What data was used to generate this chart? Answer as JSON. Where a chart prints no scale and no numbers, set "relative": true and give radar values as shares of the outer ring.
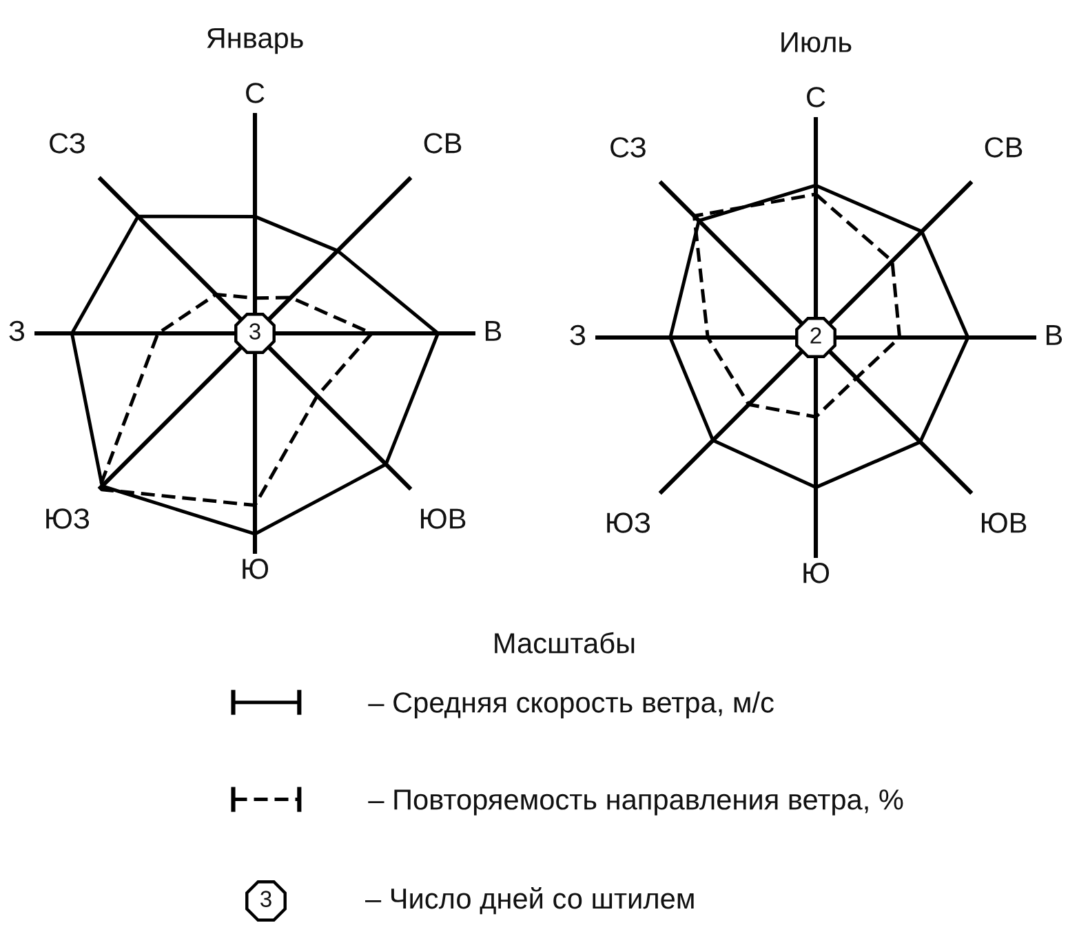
{
  "chart_data": [
    {
      "type": "radar",
      "title": "Январь",
      "categories": [
        "С",
        "СВ",
        "В",
        "ЮВ",
        "Ю",
        "ЮЗ",
        "З",
        "СЗ"
      ],
      "relative": true,
      "series": [
        {
          "name": "– Средняя скорость ветра, м/с",
          "color": "#000000",
          "line_style": "solid",
          "values": [
            0.53,
            0.53,
            0.83,
            0.84,
            0.91,
            0.98,
            0.83,
            0.75
          ]
        },
        {
          "name": "– Повторяемость направления ветра, %",
          "color": "#000000",
          "line_style": "dashed",
          "values": [
            0.16,
            0.23,
            0.53,
            0.4,
            0.78,
            1.0,
            0.44,
            0.25
          ]
        }
      ],
      "annotations": [
        "3"
      ],
      "legend": "bottom",
      "legend_title": "Масштабы"
    },
    {
      "type": "radar",
      "title": "Июль",
      "categories": [
        "С",
        "СВ",
        "В",
        "ЮВ",
        "Ю",
        "ЮЗ",
        "З",
        "СЗ"
      ],
      "relative": true,
      "series": [
        {
          "color": "#000000",
          "line_style": "solid",
          "values": [
            0.69,
            0.68,
            0.69,
            0.67,
            0.68,
            0.66,
            0.66,
            0.75
          ]
        },
        {
          "color": "#000000",
          "line_style": "dashed",
          "values": [
            0.65,
            0.49,
            0.38,
            0.26,
            0.36,
            0.43,
            0.49,
            0.78
          ]
        }
      ],
      "annotations": [
        "2"
      ]
    },
    {
      "type": "other",
      "annotations": [
        "3",
        "– Число дней со штилем"
      ]
    }
  ]
}
